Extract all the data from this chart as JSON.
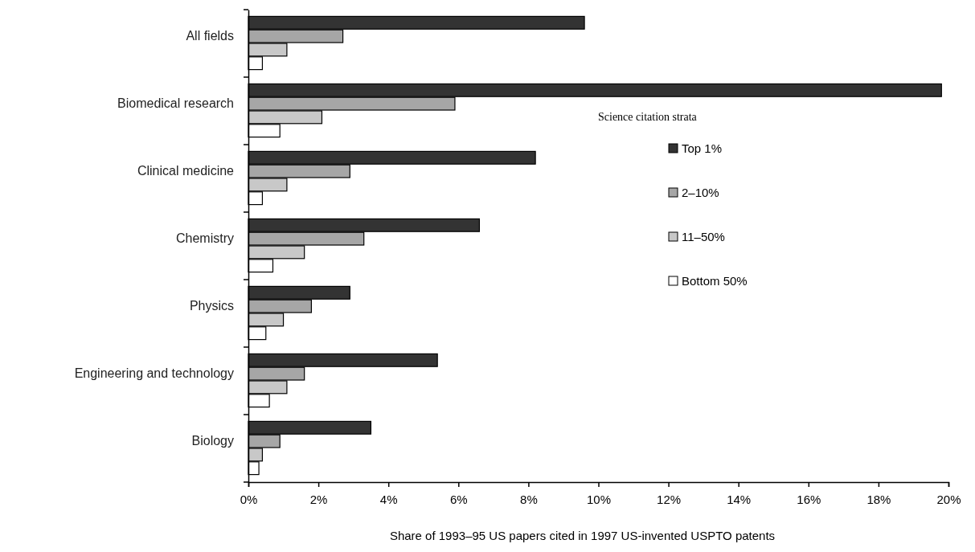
{
  "chart_data": {
    "type": "bar",
    "orientation": "horizontal",
    "xlabel": "Share of 1993–95 US papers cited in 1997 US-invented USPTO patents",
    "legend_title": "Science citation strata",
    "legend": "right",
    "grid": false,
    "categories": [
      "All fields",
      "Biomedical research",
      "Clinical medicine",
      "Chemistry",
      "Physics",
      "Engineering and technology",
      "Biology"
    ],
    "xlim": [
      0,
      20
    ],
    "xticks": [
      {
        "value": 0,
        "label": "0%"
      },
      {
        "value": 2,
        "label": "2%"
      },
      {
        "value": 4,
        "label": "4%"
      },
      {
        "value": 6,
        "label": "6%"
      },
      {
        "value": 8,
        "label": "8%"
      },
      {
        "value": 10,
        "label": "10%"
      },
      {
        "value": 12,
        "label": "12%"
      },
      {
        "value": 14,
        "label": "14%"
      },
      {
        "value": 16,
        "label": "16%"
      },
      {
        "value": 18,
        "label": "18%"
      },
      {
        "value": 20,
        "label": "20%"
      }
    ],
    "series": [
      {
        "name": "Top 1%",
        "color": "#333333",
        "values": [
          9.6,
          19.8,
          8.2,
          6.6,
          2.9,
          5.4,
          3.5
        ]
      },
      {
        "name": "2–10%",
        "color": "#a6a6a6",
        "values": [
          2.7,
          5.9,
          2.9,
          3.3,
          1.8,
          1.6,
          0.9
        ]
      },
      {
        "name": "11–50%",
        "color": "#c8c8c8",
        "values": [
          1.1,
          2.1,
          1.1,
          1.6,
          1.0,
          1.1,
          0.4
        ]
      },
      {
        "name": "Bottom 50%",
        "color": "#ffffff",
        "values": [
          0.4,
          0.9,
          0.4,
          0.7,
          0.5,
          0.6,
          0.3
        ]
      }
    ]
  }
}
